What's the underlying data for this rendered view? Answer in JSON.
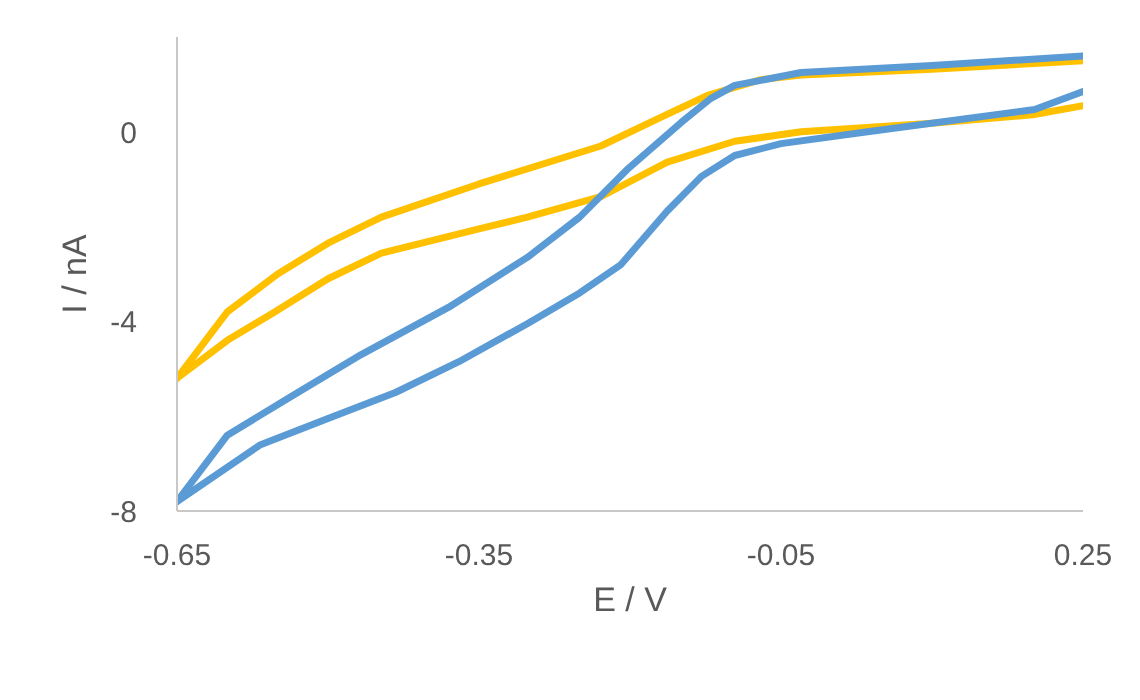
{
  "chart_data": {
    "type": "line",
    "xlabel": "E / V",
    "ylabel": "I / nA",
    "xlim": [
      -0.65,
      0.25
    ],
    "xticks": [
      -0.65,
      -0.35,
      -0.05,
      0.25
    ],
    "ylim": [
      -8,
      2
    ],
    "yticks": [
      -8,
      -4,
      0
    ],
    "grid": false,
    "marker": "none",
    "line_style": "solid",
    "series": [
      {
        "color": "#ffc000",
        "x": [
          -0.65,
          -0.6,
          -0.55,
          -0.5,
          -0.447,
          -0.35,
          -0.229,
          -0.17,
          -0.123,
          -0.07,
          -0.03,
          0.1,
          0.25
        ],
        "values": [
          -5.2,
          -3.8,
          -3.0,
          -2.35,
          -1.8,
          -1.1,
          -0.3,
          0.3,
          0.77,
          1.1,
          1.2,
          1.32,
          1.5
        ]
      },
      {
        "color": "#ffc000",
        "x": [
          -0.65,
          -0.6,
          -0.553,
          -0.5,
          -0.447,
          -0.35,
          -0.302,
          -0.229,
          -0.163,
          -0.096,
          -0.03,
          0.1,
          0.2,
          0.25
        ],
        "values": [
          -5.2,
          -4.4,
          -3.8,
          -3.1,
          -2.56,
          -2.05,
          -1.8,
          -1.37,
          -0.64,
          -0.2,
          0.0,
          0.18,
          0.36,
          0.55
        ]
      },
      {
        "color": "#5b9bd5",
        "x": [
          -0.65,
          -0.6,
          -0.53,
          -0.467,
          -0.38,
          -0.302,
          -0.25,
          -0.203,
          -0.149,
          -0.12,
          -0.096,
          -0.03,
          0.1,
          0.25
        ],
        "values": [
          -7.8,
          -6.4,
          -5.5,
          -4.7,
          -3.7,
          -2.65,
          -1.8,
          -0.8,
          0.2,
          0.7,
          0.98,
          1.25,
          1.4,
          1.6
        ]
      },
      {
        "color": "#5b9bd5",
        "x": [
          -0.65,
          -0.567,
          -0.5,
          -0.433,
          -0.37,
          -0.302,
          -0.25,
          -0.209,
          -0.163,
          -0.129,
          -0.096,
          -0.05,
          0.036,
          0.202,
          0.25
        ],
        "values": [
          -7.8,
          -6.6,
          -6.05,
          -5.5,
          -4.85,
          -4.05,
          -3.4,
          -2.8,
          -1.67,
          -0.94,
          -0.5,
          -0.25,
          0.0,
          0.47,
          0.85
        ]
      }
    ]
  }
}
